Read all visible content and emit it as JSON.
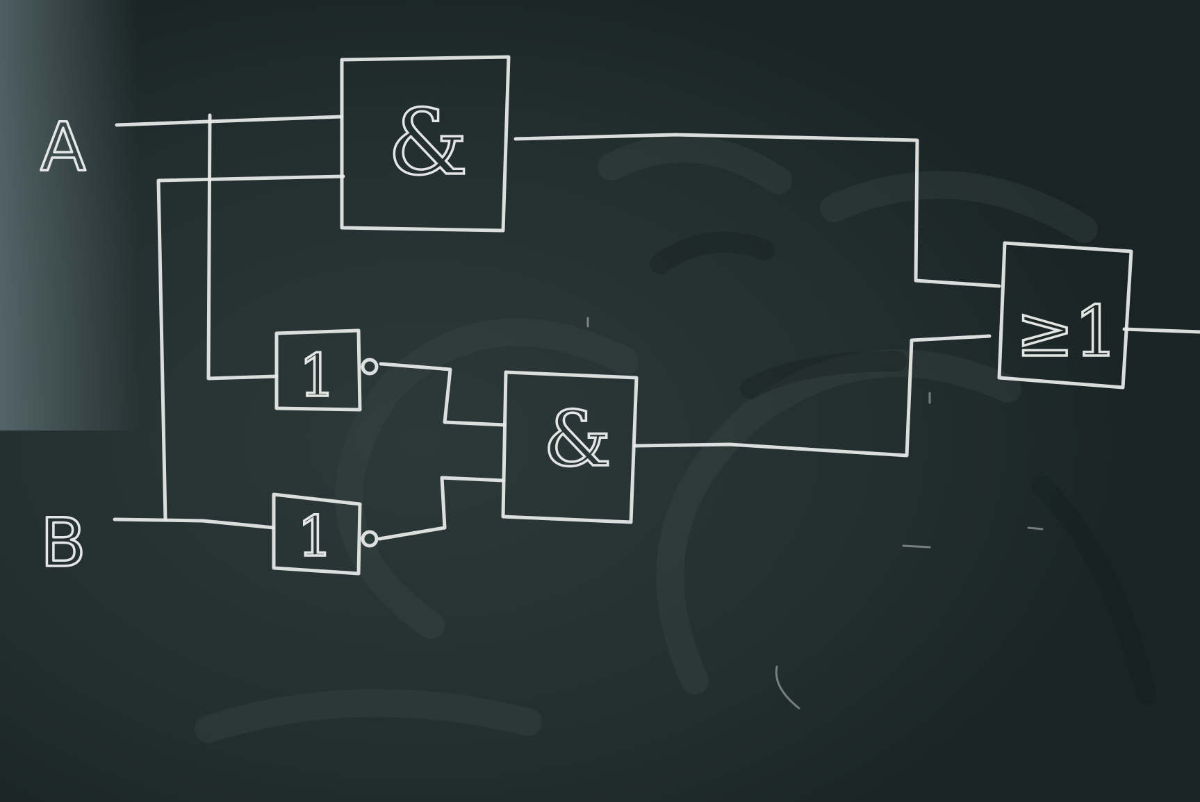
{
  "diagram": {
    "inputs": {
      "a_label": "A",
      "b_label": "B"
    },
    "gates": {
      "and_top_symbol": "&",
      "not_a_symbol": "1",
      "not_b_symbol": "1",
      "and_middle_symbol": "&",
      "or_symbol": "≥1"
    }
  },
  "colors": {
    "board": "#1f2a2a",
    "chalk": "#e9ecea"
  }
}
